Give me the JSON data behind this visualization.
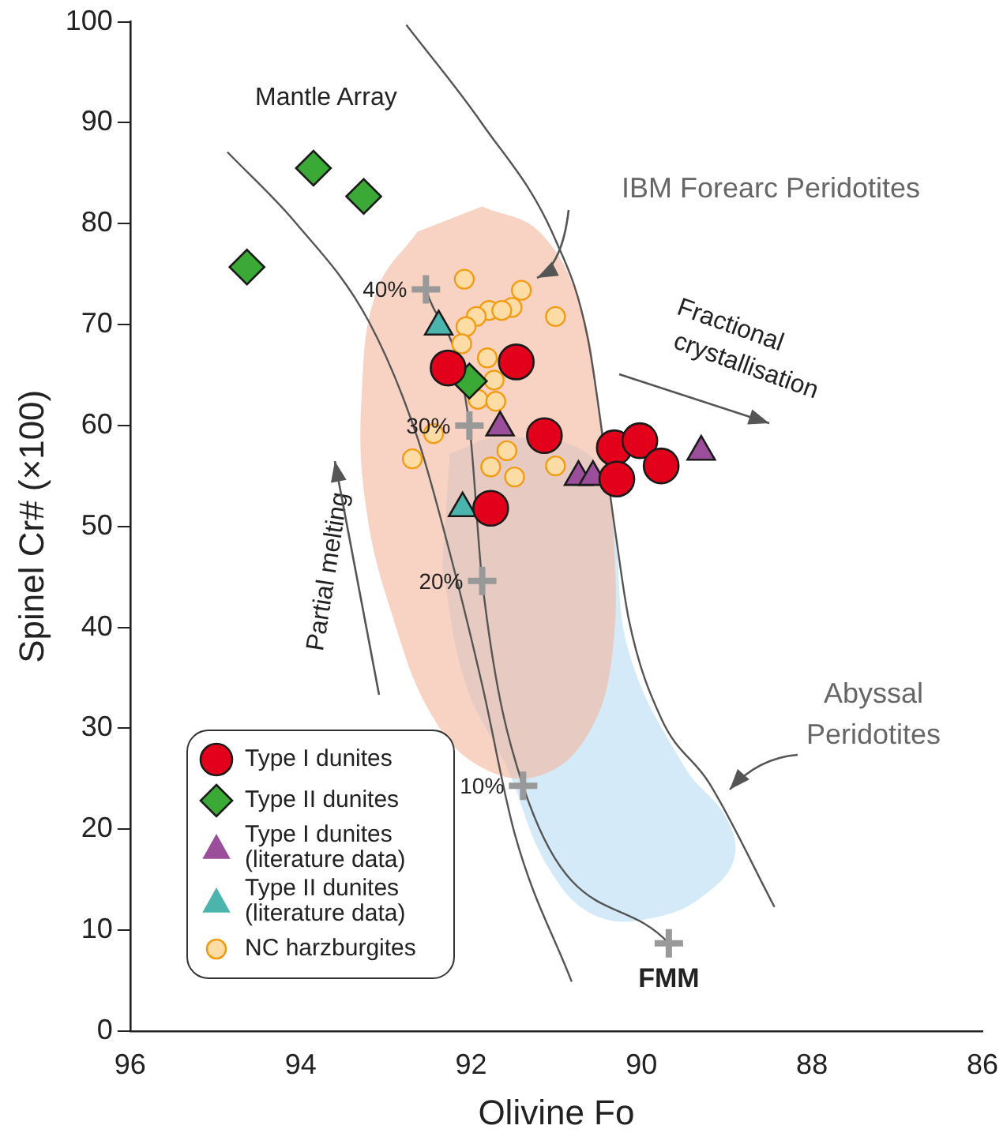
{
  "chart_data": {
    "type": "scatter",
    "xlabel": "Olivine Fo",
    "ylabel": "Spinel Cr# (×100)",
    "xlim": [
      96,
      86
    ],
    "xticks": [
      96,
      94,
      92,
      90,
      88,
      86
    ],
    "ylim": [
      0,
      100
    ],
    "yticks": [
      0,
      10,
      20,
      30,
      40,
      50,
      60,
      70,
      80,
      90,
      100
    ],
    "grid": false,
    "legend": "bottom left",
    "series": [
      {
        "name": "Type I dunites",
        "marker": "circle",
        "color": "#e2001a",
        "x": [
          92.27,
          91.47,
          91.14,
          90.32,
          90.02,
          89.77,
          90.29,
          91.77
        ],
        "values": [
          65.7,
          66.3,
          59.0,
          57.8,
          58.5,
          56.0,
          54.7,
          51.8
        ]
      },
      {
        "name": "Type II dunites",
        "marker": "diamond",
        "color": "#3aa935",
        "x": [
          94.63,
          93.85,
          93.26,
          92.02
        ],
        "values": [
          75.7,
          85.5,
          82.7,
          64.4
        ]
      },
      {
        "name": "Type I dunites (literature data)",
        "marker": "triangle",
        "color": "#9b4f9b",
        "x": [
          91.66,
          89.3,
          90.74,
          90.57
        ],
        "values": [
          59.8,
          57.4,
          54.9,
          54.9
        ]
      },
      {
        "name": "Type II dunites (literature data)",
        "marker": "triangle",
        "color": "#4bb5ad",
        "x": [
          92.38,
          92.1
        ],
        "values": [
          69.8,
          51.8
        ]
      },
      {
        "name": "NC harzburgites",
        "marker": "circle",
        "color": "#fddca6",
        "x": [
          92.08,
          91.41,
          91.01,
          91.52,
          91.79,
          91.94,
          92.06,
          91.64,
          92.11,
          91.81,
          91.92,
          91.71,
          92.44,
          92.69,
          91.58,
          91.77,
          91.49,
          91.01,
          91.73
        ],
        "values": [
          74.5,
          73.4,
          70.8,
          71.7,
          71.4,
          70.8,
          69.8,
          71.4,
          68.1,
          66.7,
          62.6,
          62.4,
          59.2,
          56.7,
          57.5,
          55.9,
          54.9,
          56.0,
          64.5
        ]
      },
      {
        "type": "line",
        "marker": "cross",
        "color": "#999999",
        "x": [
          92.53,
          92.02,
          91.87,
          91.39,
          89.68
        ],
        "values": [
          73.5,
          60.0,
          44.6,
          24.3,
          8.7
        ]
      },
      {
        "type": "line",
        "marker": "none",
        "color": "#555555",
        "x": [
          94.86,
          94.06,
          93.2,
          92.63,
          92.25,
          91.87,
          91.49,
          90.82
        ],
        "values": [
          87.1,
          80.1,
          70.3,
          58.8,
          47.4,
          34.3,
          19.6,
          4.9
        ]
      },
      {
        "type": "line",
        "marker": "none",
        "color": "#555555",
        "x": [
          92.76,
          91.87,
          91.01,
          90.63,
          90.3,
          90.15,
          89.77,
          89.2,
          88.44
        ],
        "values": [
          99.7,
          89.9,
          78.4,
          68.6,
          49.0,
          40.8,
          31.0,
          24.5,
          12.3
        ]
      },
      {
        "type": "area",
        "color": "#f4b59c",
        "x": [
          91.87,
          91.2,
          90.72,
          90.5,
          90.34,
          90.34,
          90.63,
          91.2,
          91.87,
          92.44,
          92.91,
          93.24,
          93.28,
          93.1,
          92.63
        ],
        "values": [
          81.7,
          79.2,
          71.9,
          62.1,
          50.7,
          37.6,
          29.4,
          25.3,
          26.1,
          31.0,
          40.8,
          52.3,
          63.7,
          73.5,
          79.2
        ]
      },
      {
        "type": "area",
        "color": "#b9dcf5",
        "x": [
          92.25,
          91.68,
          90.63,
          90.34,
          90.15,
          89.49,
          89.01,
          88.91,
          89.2,
          89.77,
          90.53,
          91.1,
          91.58,
          92.06,
          92.34
        ],
        "values": [
          57.2,
          58.8,
          57.2,
          50.7,
          37.6,
          26.1,
          21.2,
          17.2,
          13.9,
          11.4,
          11.4,
          16.3,
          26.1,
          34.3,
          45.8
        ]
      }
    ],
    "annotations": [
      "Mantle Array",
      "IBM Forearc Peridotites",
      "Abyssal Peridotites",
      "Partial melting",
      "Fractional crystallisation",
      {
        "text": "40%",
        "x": 92.53,
        "y": 73.5
      },
      {
        "text": "30%",
        "x": 92.02,
        "y": 60.0
      },
      {
        "text": "20%",
        "x": 91.87,
        "y": 44.6
      },
      {
        "text": "10%",
        "x": 91.39,
        "y": 24.3
      },
      {
        "text": "FMM",
        "x": 89.68,
        "y": 8.7
      }
    ]
  }
}
